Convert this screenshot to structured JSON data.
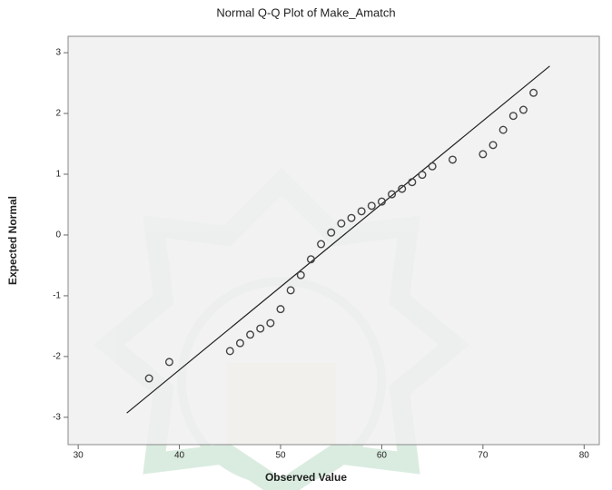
{
  "chart_data": {
    "type": "scatter",
    "title": "Normal Q-Q Plot of Make_Amatch",
    "x_label": "Observed Value",
    "y_label": "Expected Normal",
    "x": [
      37,
      39,
      45,
      46,
      47,
      48,
      49,
      50,
      51,
      52,
      53,
      54,
      55,
      56,
      57,
      58,
      59,
      60,
      61,
      62,
      63,
      64,
      65,
      67,
      70,
      71,
      72,
      73,
      74,
      75
    ],
    "values": [
      -2.36,
      -2.09,
      -1.91,
      -1.78,
      -1.64,
      -1.54,
      -1.45,
      -1.22,
      -0.91,
      -0.66,
      -0.4,
      -0.15,
      0.04,
      0.19,
      0.28,
      0.39,
      0.48,
      0.55,
      0.67,
      0.76,
      0.87,
      0.99,
      1.13,
      1.24,
      1.33,
      1.48,
      1.73,
      1.96,
      2.06,
      2.34
    ],
    "color": "#444444",
    "reference_line": {
      "x": [
        34.8,
        76.6
      ],
      "y": [
        -2.93,
        2.78
      ]
    },
    "xlim": [
      29,
      81.5
    ],
    "ylim": [
      -3.45,
      3.27
    ],
    "xticks": [
      30,
      40,
      50,
      60,
      70,
      80
    ],
    "yticks": [
      -3,
      -2,
      -1,
      0,
      1,
      2,
      3
    ]
  }
}
